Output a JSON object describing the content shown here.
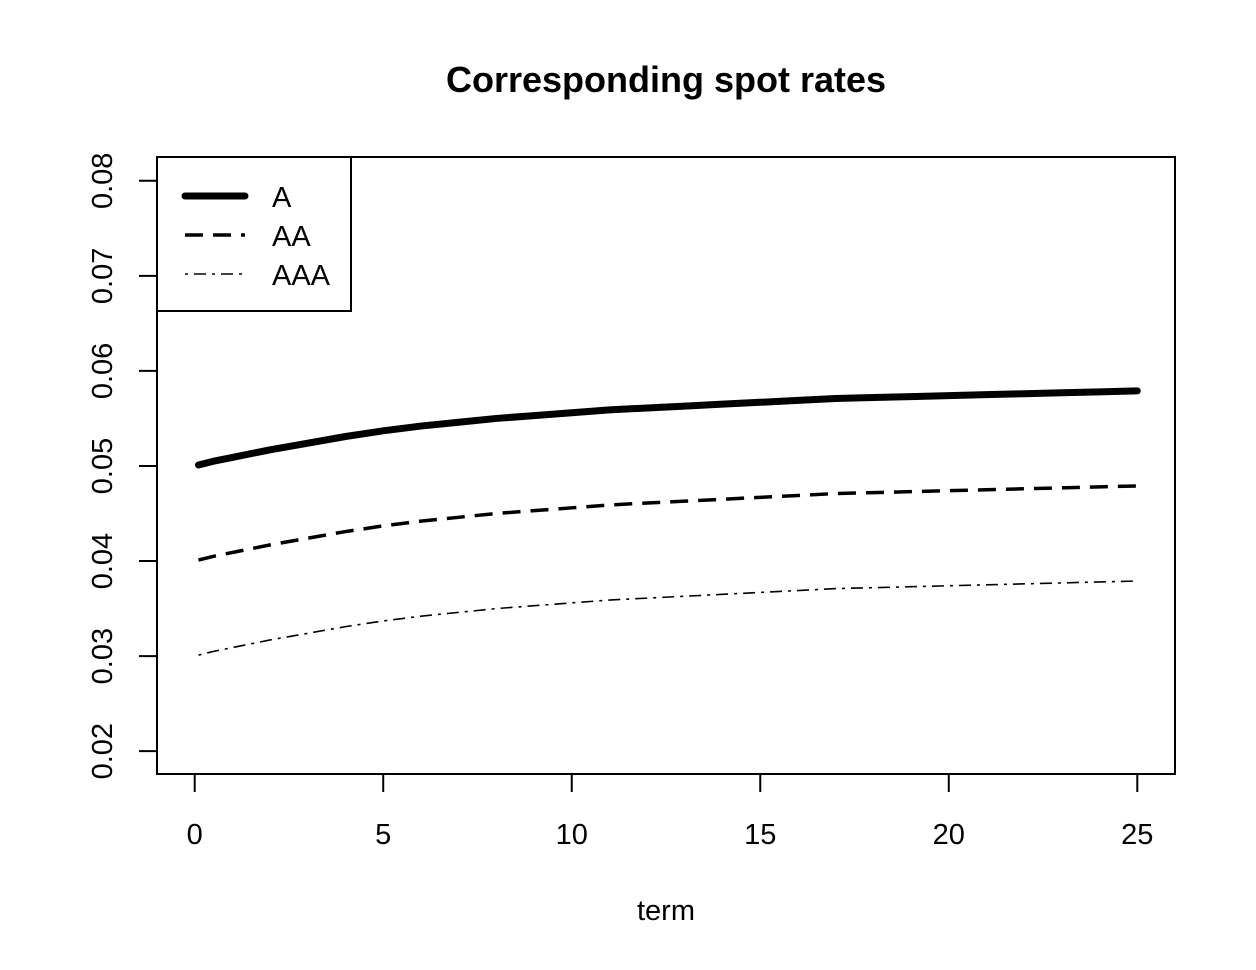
{
  "chart_data": {
    "type": "line",
    "title": "Corresponding spot rates",
    "xlabel": "term",
    "ylabel": "",
    "xlim": [
      -1,
      26
    ],
    "ylim": [
      0.0176,
      0.0825
    ],
    "xticks": [
      0,
      5,
      10,
      15,
      20,
      25
    ],
    "xtick_labels": [
      "0",
      "5",
      "10",
      "15",
      "20",
      "25"
    ],
    "yticks": [
      0.02,
      0.03,
      0.04,
      0.05,
      0.06,
      0.07,
      0.08
    ],
    "ytick_labels": [
      "0.02",
      "0.03",
      "0.04",
      "0.05",
      "0.06",
      "0.07",
      "0.08"
    ],
    "grid": false,
    "legend": "top-left",
    "x": [
      0.1,
      0.5,
      1,
      2,
      3,
      4,
      5,
      6,
      7,
      8,
      9,
      10,
      11,
      12,
      13,
      14,
      15,
      16,
      17,
      18,
      19,
      20,
      21,
      22,
      23,
      24,
      25
    ],
    "series": [
      {
        "name": "A",
        "style": "solid-thick",
        "color": "#000000",
        "values": [
          0.0501,
          0.0505,
          0.0509,
          0.0517,
          0.0524,
          0.0531,
          0.0537,
          0.0542,
          0.0546,
          0.055,
          0.0553,
          0.0556,
          0.0559,
          0.0561,
          0.0563,
          0.0565,
          0.0567,
          0.0569,
          0.0571,
          0.0572,
          0.0573,
          0.0574,
          0.0575,
          0.0576,
          0.0577,
          0.0578,
          0.0579
        ]
      },
      {
        "name": "AA",
        "style": "dashed",
        "color": "#000000",
        "values": [
          0.0401,
          0.0405,
          0.0409,
          0.0417,
          0.0424,
          0.0431,
          0.0437,
          0.0442,
          0.0446,
          0.045,
          0.0453,
          0.0456,
          0.0459,
          0.0461,
          0.0463,
          0.0465,
          0.0467,
          0.0469,
          0.0471,
          0.0472,
          0.0473,
          0.0474,
          0.0475,
          0.0476,
          0.0477,
          0.0478,
          0.0479
        ]
      },
      {
        "name": "AAA",
        "style": "dotdash-thin",
        "color": "#000000",
        "values": [
          0.0301,
          0.0305,
          0.0309,
          0.0317,
          0.0324,
          0.0331,
          0.0337,
          0.0342,
          0.0346,
          0.035,
          0.0353,
          0.0356,
          0.0359,
          0.0361,
          0.0363,
          0.0365,
          0.0367,
          0.0369,
          0.0371,
          0.0372,
          0.0373,
          0.0374,
          0.0375,
          0.0376,
          0.0377,
          0.0378,
          0.0379
        ]
      }
    ]
  }
}
